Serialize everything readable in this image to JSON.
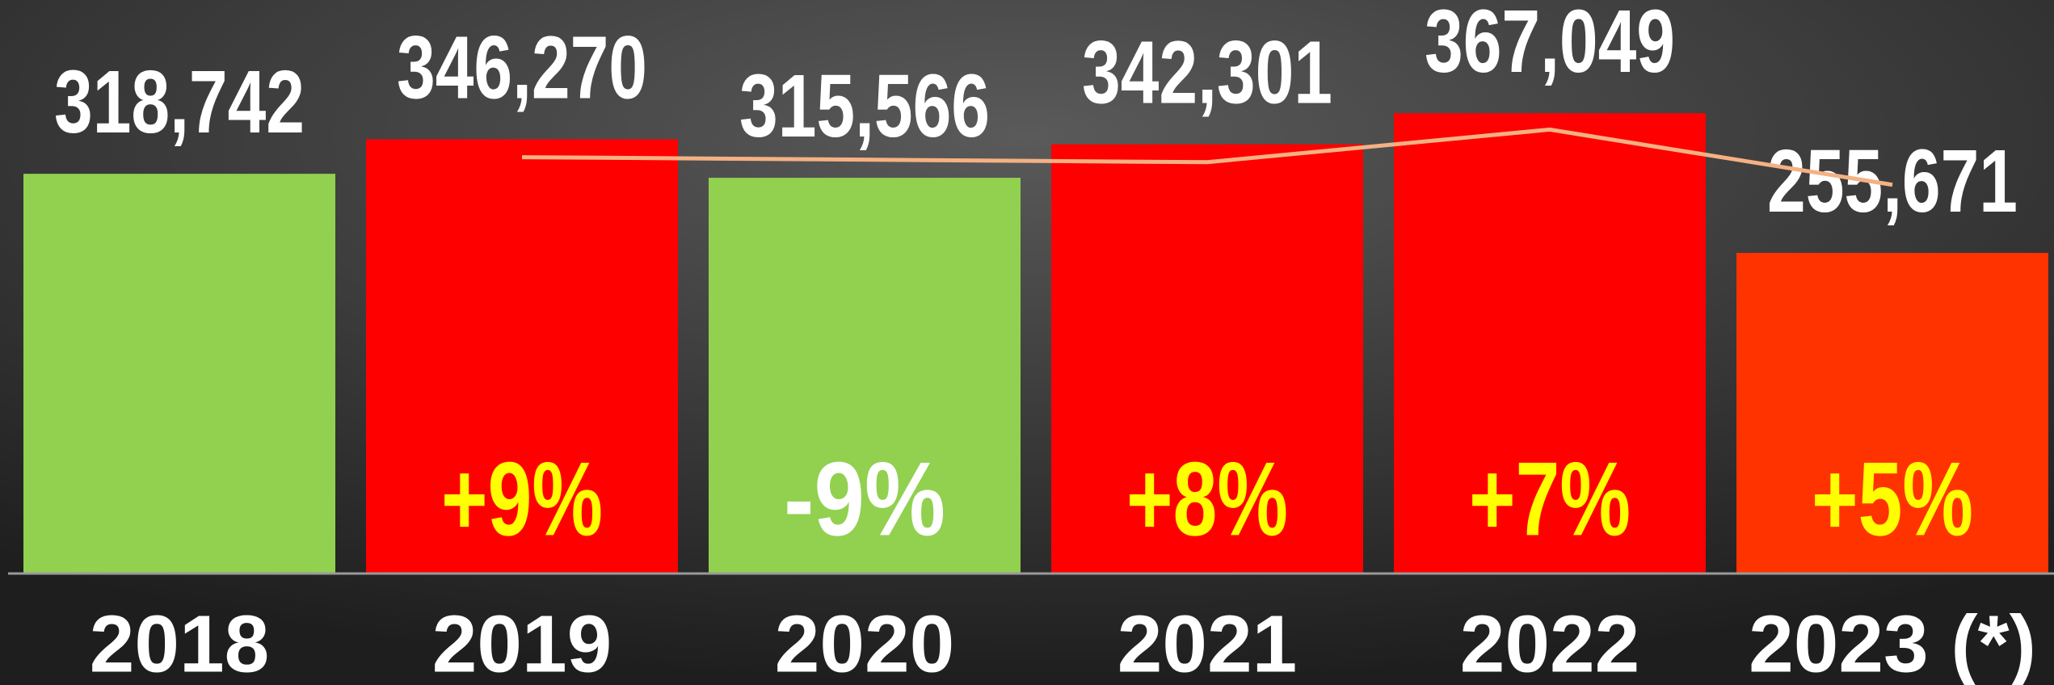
{
  "chart_data": {
    "type": "bar",
    "categories": [
      "2018",
      "2019",
      "2020",
      "2021",
      "2022",
      "2023 (*)"
    ],
    "values": [
      318742,
      346270,
      315566,
      342301,
      367049,
      255671
    ],
    "value_labels": [
      "318,742",
      "346,270",
      "315,566",
      "342,301",
      "367,049",
      "255,671"
    ],
    "colors": [
      "#92d050",
      "#ff0000",
      "#92d050",
      "#ff0000",
      "#ff0000",
      "#ff3300"
    ],
    "change_labels": [
      null,
      "+9%",
      "-9%",
      "+8%",
      "+7%",
      "+5%"
    ],
    "change_label_colors": [
      null,
      "#ffff00",
      "#ffffff",
      "#ffff00",
      "#ffff00",
      "#ffff00"
    ],
    "line": {
      "color": "#f4b183",
      "values": [
        null,
        332000,
        330000,
        328000,
        354000,
        310000
      ]
    },
    "ylim": [
      0,
      400000
    ]
  }
}
